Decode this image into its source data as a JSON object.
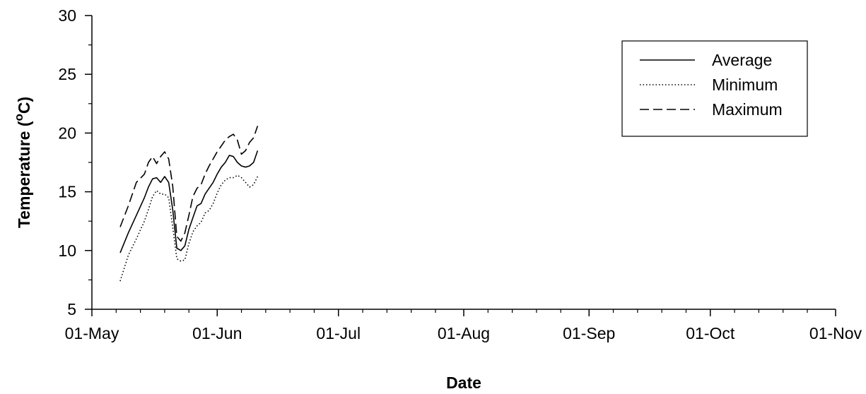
{
  "chart_data": {
    "type": "line",
    "title": "",
    "xlabel": "Date",
    "ylabel": "Temperature (°C)",
    "ylabel_parts": [
      "Temperature (",
      "o",
      "C)"
    ],
    "x_ticks": [
      "01-May",
      "01-Jun",
      "01-Jul",
      "01-Aug",
      "01-Sep",
      "01-Oct",
      "01-Nov"
    ],
    "x_tick_dates": [
      "2000-05-01",
      "2000-06-01",
      "2000-07-01",
      "2000-08-01",
      "2000-09-01",
      "2000-10-01",
      "2000-11-01"
    ],
    "xlim": [
      "2000-05-01",
      "2000-11-01"
    ],
    "ylim": [
      5,
      30
    ],
    "y_ticks": [
      5,
      10,
      15,
      20,
      25,
      30
    ],
    "grid": false,
    "legend_position": "top-right",
    "series": [
      {
        "name": "Average",
        "style": "solid",
        "x": [
          "2000-05-08",
          "2000-05-10",
          "2000-05-12",
          "2000-05-14",
          "2000-05-15",
          "2000-05-16",
          "2000-05-17",
          "2000-05-18",
          "2000-05-19",
          "2000-05-20",
          "2000-05-21",
          "2000-05-22",
          "2000-05-23",
          "2000-05-24",
          "2000-05-25",
          "2000-05-26",
          "2000-05-27",
          "2000-05-28",
          "2000-05-29",
          "2000-05-30",
          "2000-05-31",
          "2000-06-01",
          "2000-06-02",
          "2000-06-03",
          "2000-06-04",
          "2000-06-05",
          "2000-06-06",
          "2000-06-07",
          "2000-06-08",
          "2000-06-09",
          "2000-06-10",
          "2000-06-11"
        ],
        "y": [
          9.8,
          11.5,
          13.0,
          14.5,
          15.4,
          16.1,
          16.2,
          15.8,
          16.3,
          15.8,
          13.5,
          10.2,
          10.0,
          10.4,
          11.8,
          12.8,
          13.8,
          14.0,
          14.8,
          15.3,
          15.8,
          16.5,
          17.1,
          17.5,
          18.1,
          18.0,
          17.5,
          17.2,
          17.1,
          17.2,
          17.5,
          18.5
        ]
      },
      {
        "name": "Minimum",
        "style": "dotted",
        "x": [
          "2000-05-08",
          "2000-05-10",
          "2000-05-12",
          "2000-05-14",
          "2000-05-15",
          "2000-05-16",
          "2000-05-17",
          "2000-05-18",
          "2000-05-19",
          "2000-05-20",
          "2000-05-21",
          "2000-05-22",
          "2000-05-23",
          "2000-05-24",
          "2000-05-25",
          "2000-05-26",
          "2000-05-27",
          "2000-05-28",
          "2000-05-29",
          "2000-05-30",
          "2000-05-31",
          "2000-06-01",
          "2000-06-02",
          "2000-06-03",
          "2000-06-04",
          "2000-06-05",
          "2000-06-06",
          "2000-06-07",
          "2000-06-08",
          "2000-06-09",
          "2000-06-10",
          "2000-06-11"
        ],
        "y": [
          7.4,
          9.6,
          11.0,
          12.5,
          13.5,
          14.6,
          15.1,
          14.8,
          14.8,
          14.5,
          12.0,
          9.3,
          9.1,
          9.2,
          10.6,
          11.6,
          12.1,
          12.4,
          13.2,
          13.4,
          14.0,
          14.9,
          15.6,
          16.0,
          16.2,
          16.2,
          16.4,
          16.2,
          15.8,
          15.4,
          15.6,
          16.3
        ]
      },
      {
        "name": "Maximum",
        "style": "dashed",
        "x": [
          "2000-05-08",
          "2000-05-10",
          "2000-05-12",
          "2000-05-14",
          "2000-05-15",
          "2000-05-16",
          "2000-05-17",
          "2000-05-18",
          "2000-05-19",
          "2000-05-20",
          "2000-05-21",
          "2000-05-22",
          "2000-05-23",
          "2000-05-24",
          "2000-05-25",
          "2000-05-26",
          "2000-05-27",
          "2000-05-28",
          "2000-05-29",
          "2000-05-30",
          "2000-05-31",
          "2000-06-01",
          "2000-06-02",
          "2000-06-03",
          "2000-06-04",
          "2000-06-05",
          "2000-06-06",
          "2000-06-07",
          "2000-06-08",
          "2000-06-09",
          "2000-06-10",
          "2000-06-11"
        ],
        "y": [
          12.0,
          13.8,
          15.8,
          16.5,
          17.5,
          18.0,
          17.4,
          18.0,
          18.4,
          17.8,
          15.5,
          11.2,
          10.8,
          11.5,
          13.0,
          14.6,
          15.3,
          15.6,
          16.5,
          17.2,
          17.8,
          18.4,
          18.9,
          19.4,
          19.7,
          19.9,
          19.4,
          18.2,
          18.5,
          19.2,
          19.6,
          20.6
        ]
      }
    ]
  }
}
